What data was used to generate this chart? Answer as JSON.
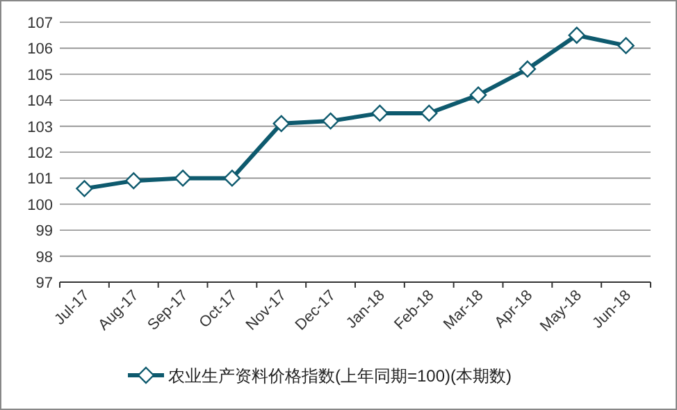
{
  "chart_data": {
    "type": "line",
    "categories": [
      "Jul-17",
      "Aug-17",
      "Sep-17",
      "Oct-17",
      "Nov-17",
      "Dec-17",
      "Jan-18",
      "Feb-18",
      "Mar-18",
      "Apr-18",
      "May-18",
      "Jun-18"
    ],
    "series": [
      {
        "name": "农业生产资料价格指数(上年同期=100)(本期数)",
        "color": "#0e5a6e",
        "values": [
          100.6,
          100.9,
          101.0,
          101.0,
          103.1,
          103.2,
          103.5,
          103.5,
          104.2,
          105.2,
          106.5,
          106.1
        ]
      }
    ],
    "ylim": [
      97,
      107
    ],
    "yticks": [
      97,
      98,
      99,
      100,
      101,
      102,
      103,
      104,
      105,
      106,
      107
    ],
    "grid": "y",
    "legend": "bottom",
    "marker": "diamond",
    "line_style": "solid"
  }
}
